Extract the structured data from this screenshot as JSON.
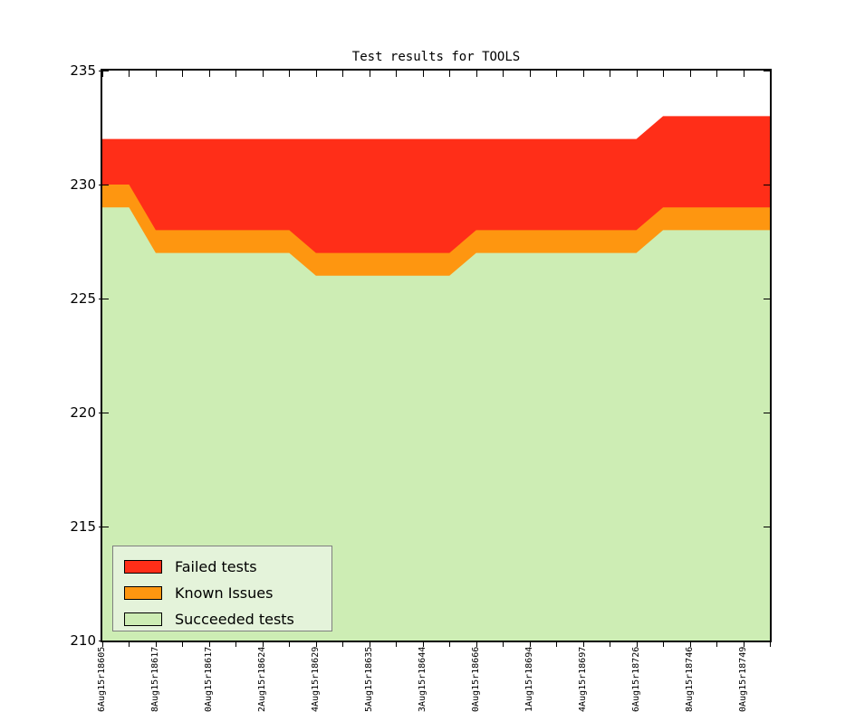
{
  "title": "Test results for TOOLS",
  "colors": {
    "failed": "#ff2e18",
    "known": "#fe9610",
    "succeeded": "#cdedb4",
    "legend_background": "#e4f3da",
    "legend_border": "#7f7f7f",
    "axis": "#000000",
    "background": "#ffffff"
  },
  "legend": {
    "items": [
      {
        "label": "Failed tests",
        "color_key": "failed",
        "icon": "red-swatch-icon"
      },
      {
        "label": "Known Issues",
        "color_key": "known",
        "icon": "orange-swatch-icon"
      },
      {
        "label": "Succeeded tests",
        "color_key": "succeeded",
        "icon": "green-swatch-icon"
      }
    ]
  },
  "chart_data": {
    "type": "area",
    "stacked": true,
    "title": "Test results for TOOLS",
    "xlabel": "",
    "ylabel": "",
    "ylim": [
      210,
      235
    ],
    "yticks": [
      210,
      215,
      220,
      225,
      230,
      235
    ],
    "grid": false,
    "legend_position": "lower left",
    "n_points": 26,
    "x_tick_labels": [
      "6Aug15r18605",
      "8Aug15r18617",
      "0Aug15r18617",
      "2Aug15r18624",
      "4Aug15r18629",
      "5Aug15r18635",
      "3Aug15r18644",
      "0Aug15r18666",
      "1Aug15r18694",
      "4Aug15r18697",
      "6Aug15r18726",
      "8Aug15r18746",
      "0Aug15r18749"
    ],
    "x_tick_label_step": 2,
    "series": [
      {
        "name": "Succeeded tests",
        "values": [
          229,
          229,
          227,
          227,
          227,
          227,
          227,
          227,
          226,
          226,
          226,
          226,
          226,
          226,
          227,
          227,
          227,
          227,
          227,
          227,
          227,
          228,
          228,
          228,
          228,
          228
        ]
      },
      {
        "name": "Known Issues",
        "values": [
          1,
          1,
          1,
          1,
          1,
          1,
          1,
          1,
          1,
          1,
          1,
          1,
          1,
          1,
          1,
          1,
          1,
          1,
          1,
          1,
          1,
          1,
          1,
          1,
          1,
          1
        ]
      },
      {
        "name": "Failed tests",
        "values": [
          2,
          2,
          4,
          4,
          4,
          4,
          4,
          4,
          5,
          5,
          5,
          5,
          5,
          5,
          4,
          4,
          4,
          4,
          4,
          4,
          4,
          4,
          4,
          4,
          4,
          4
        ]
      }
    ],
    "stack_totals": [
      232,
      232,
      232,
      232,
      232,
      232,
      232,
      232,
      232,
      232,
      232,
      232,
      232,
      232,
      232,
      232,
      232,
      232,
      232,
      232,
      232,
      233,
      233,
      233,
      233,
      233
    ]
  }
}
